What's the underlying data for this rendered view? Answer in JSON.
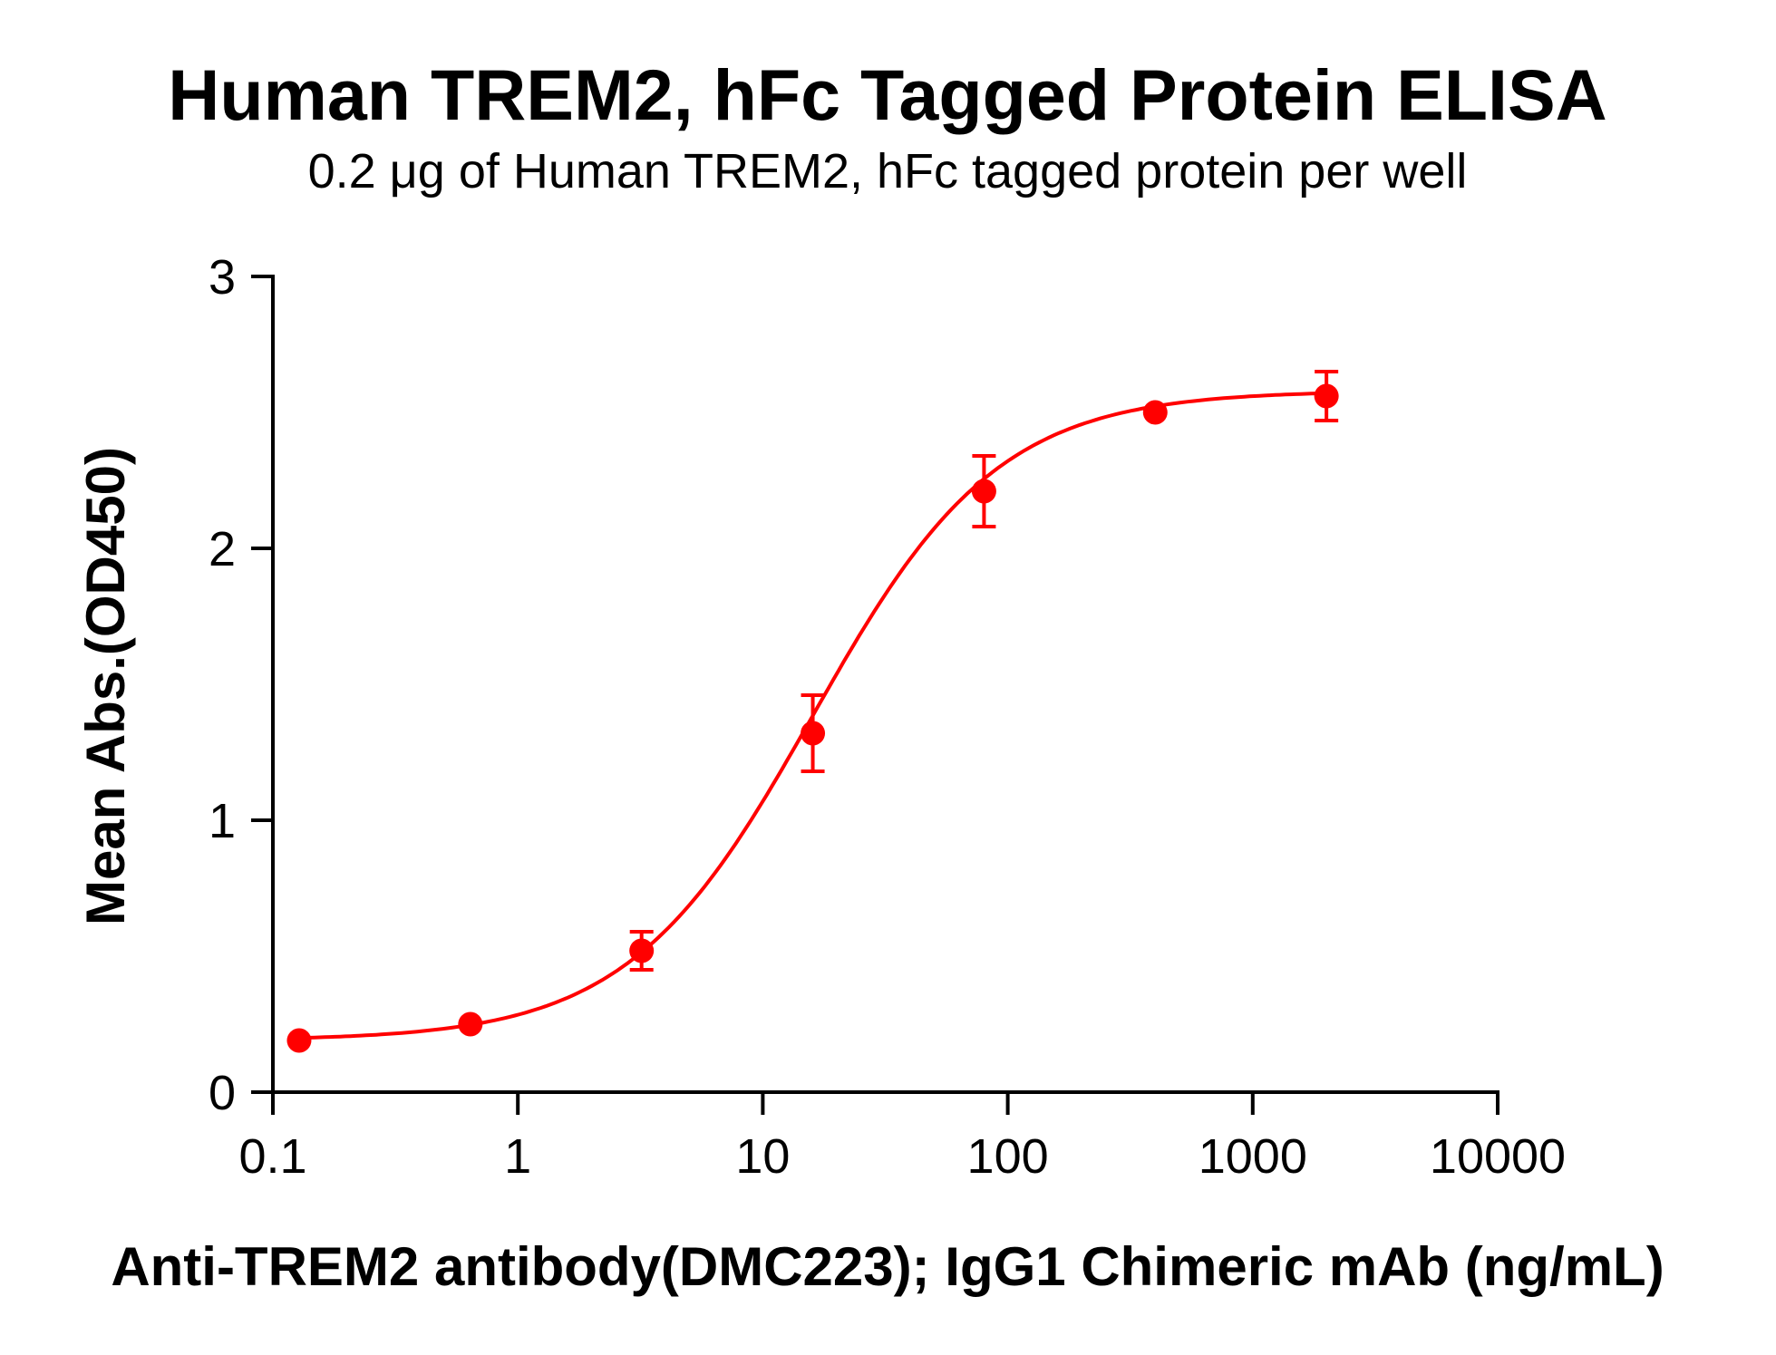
{
  "chart_data": {
    "type": "scatter",
    "title": "Human TREM2, hFc Tagged Protein ELISA",
    "subtitle": "0.2 μg of Human TREM2, hFc tagged protein per well",
    "xlabel": "Anti-TREM2 antibody(DMC223); IgG1 Chimeric mAb (ng/mL)",
    "ylabel": "Mean Abs.(OD450)",
    "xscale": "log",
    "xlim": [
      0.1,
      10000
    ],
    "ylim": [
      0,
      3
    ],
    "x_ticks": [
      0.1,
      1,
      10,
      100,
      1000,
      10000
    ],
    "x_tick_labels": [
      "0.1",
      "1",
      "10",
      "100",
      "1000",
      "10000"
    ],
    "y_ticks": [
      0,
      1,
      2,
      3
    ],
    "y_tick_labels": [
      "0",
      "1",
      "2",
      "3"
    ],
    "grid": false,
    "legend": null,
    "series": [
      {
        "name": "Anti-TREM2 antibody (DMC223)",
        "color": "#FF0000",
        "x": [
          0.128,
          0.64,
          3.2,
          16,
          80,
          400,
          2000
        ],
        "y": [
          0.19,
          0.25,
          0.52,
          1.32,
          2.21,
          2.5,
          2.56
        ],
        "error": [
          0.0,
          0.0,
          0.07,
          0.14,
          0.13,
          0.0,
          0.09
        ],
        "fit": {
          "model": "4PL",
          "bottom": 0.19,
          "top": 2.58,
          "ec50": 16,
          "hill": 1.15
        }
      }
    ]
  }
}
